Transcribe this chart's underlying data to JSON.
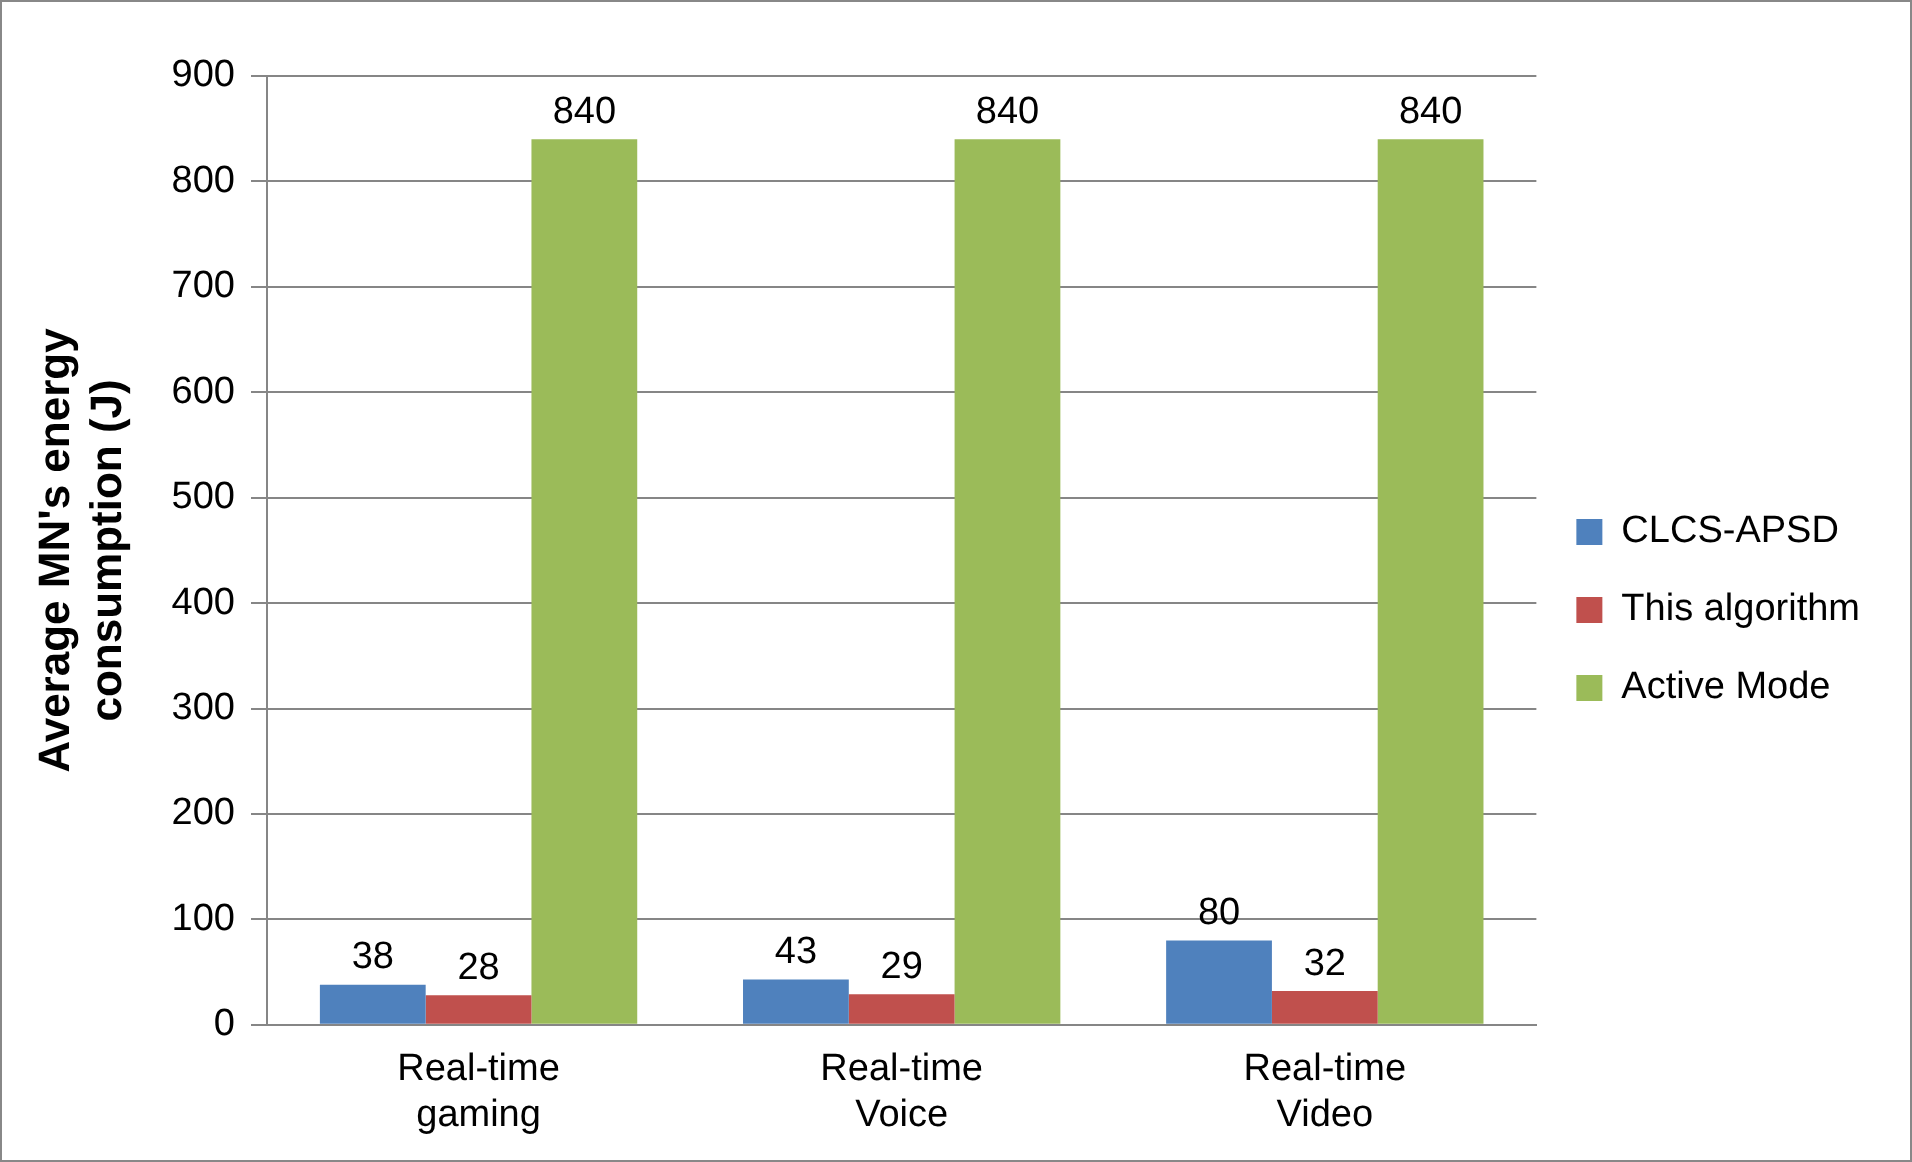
{
  "chart_data": {
    "type": "bar",
    "ylabel": "Average MN's energy consumption (J)",
    "categories": [
      "Real-time gaming",
      "Real-time Voice",
      "Real-time Video"
    ],
    "series": [
      {
        "name": "CLCS-APSD",
        "color": "#4f81bd",
        "values": [
          38,
          43,
          80
        ]
      },
      {
        "name": "This algorithm",
        "color": "#c0504d",
        "values": [
          28,
          29,
          32
        ]
      },
      {
        "name": "Active Mode",
        "color": "#9bbb59",
        "values": [
          840,
          840,
          840
        ]
      }
    ],
    "ylim": [
      0,
      900
    ],
    "yticks": [
      0,
      100,
      200,
      300,
      400,
      500,
      600,
      700,
      800,
      900
    ],
    "grid": "y",
    "legend": "right",
    "data_labels": true
  }
}
